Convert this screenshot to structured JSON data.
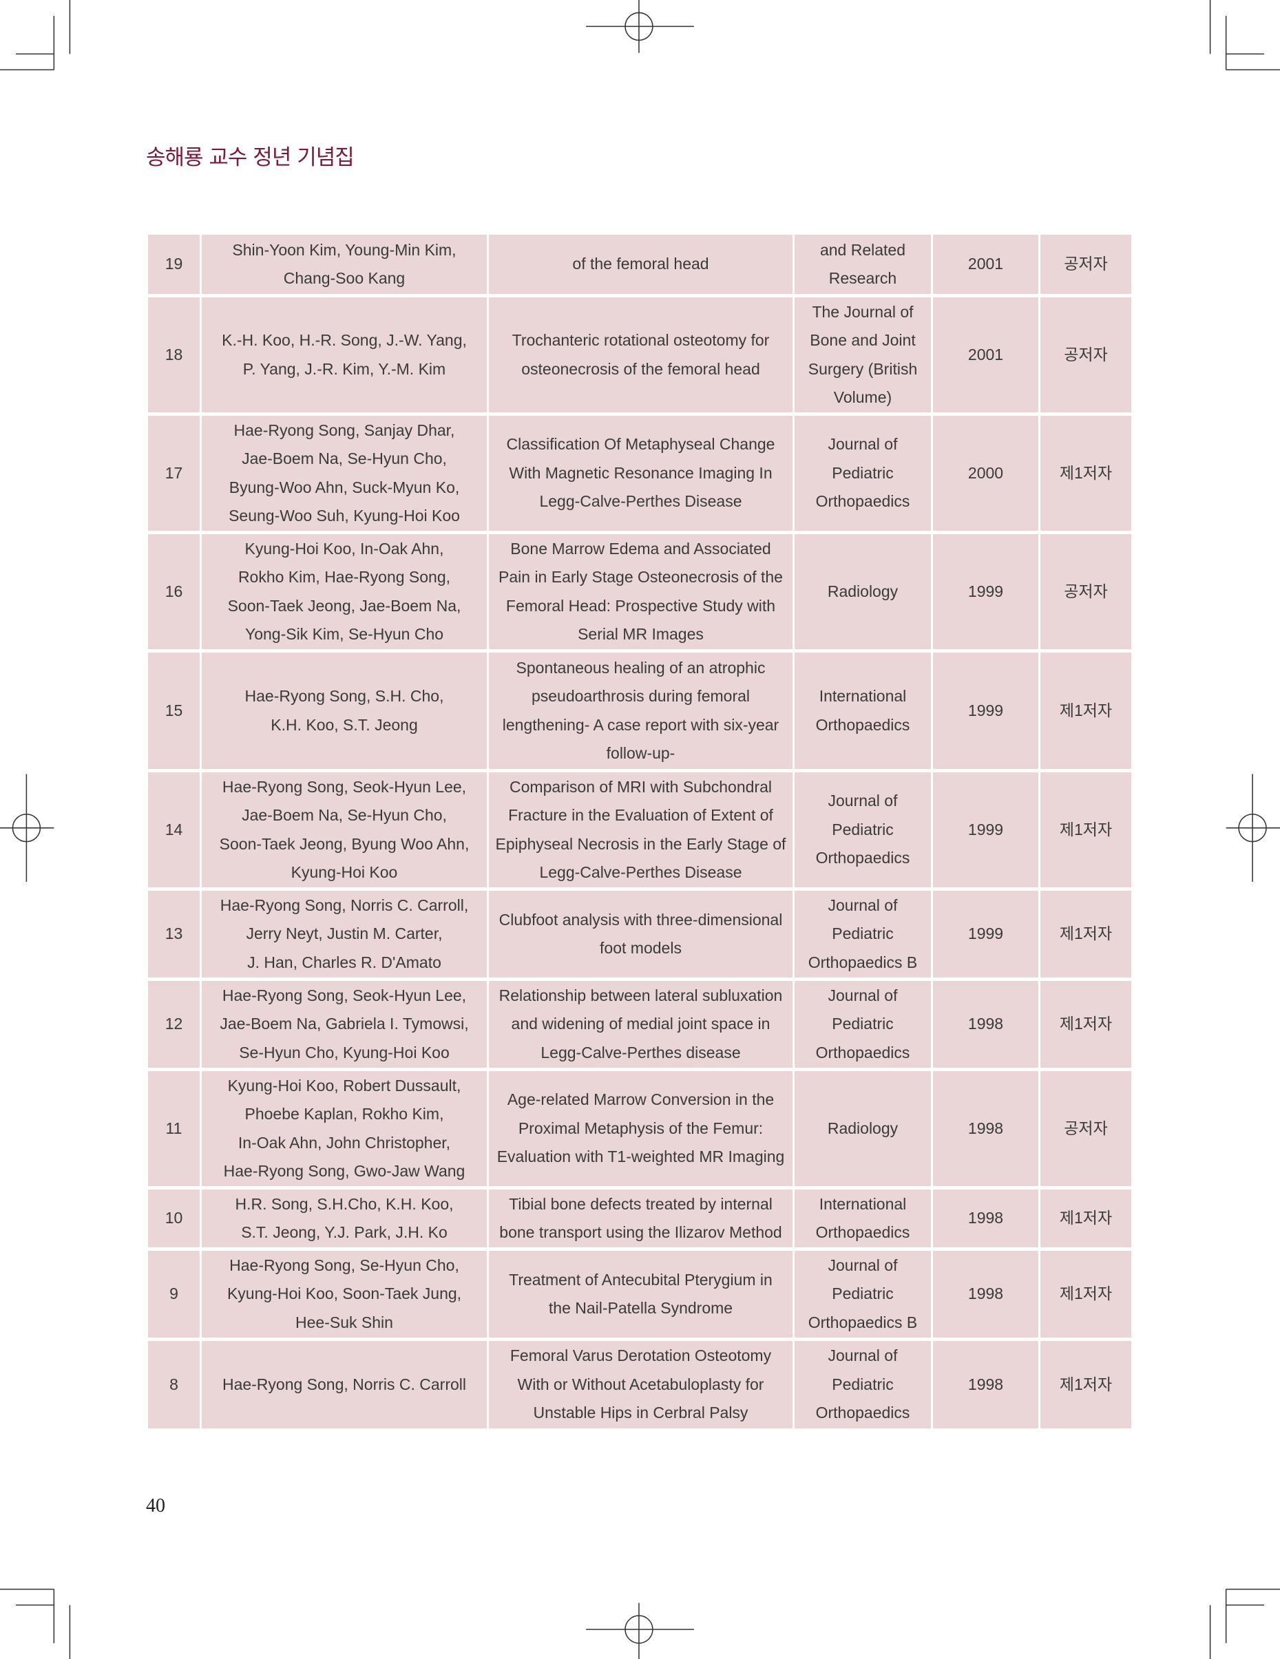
{
  "header": {
    "title": "송해룡 교수 정년 기념집"
  },
  "page_number": "40",
  "colors": {
    "title": "#7a1b3a",
    "cell_background": "#ead6d6"
  },
  "rows": [
    {
      "no": "19",
      "authors": "Shin-Yoon Kim, Young-Min Kim,\nChang-Soo Kang",
      "title": "of the femoral head",
      "journal": "and Related\nResearch",
      "year": "2001",
      "role": "공저자"
    },
    {
      "no": "18",
      "authors": "K.-H. Koo, H.-R. Song, J.-W. Yang,\nP. Yang, J.-R. Kim, Y.-M. Kim",
      "title": "Trochanteric rotational osteotomy for\nosteonecrosis of the femoral head",
      "journal": "The Journal of\nBone and Joint\nSurgery (British\nVolume)",
      "year": "2001",
      "role": "공저자"
    },
    {
      "no": "17",
      "authors": "Hae-Ryong Song, Sanjay Dhar,\nJae-Boem Na, Se-Hyun Cho,\nByung-Woo Ahn, Suck-Myun Ko,\nSeung-Woo Suh, Kyung-Hoi Koo",
      "title": "Classification Of Metaphyseal Change\nWith Magnetic Resonance Imaging In\nLegg-Calve-Perthes Disease",
      "journal": "Journal of\nPediatric\nOrthopaedics",
      "year": "2000",
      "role": "제1저자"
    },
    {
      "no": "16",
      "authors": "Kyung-Hoi Koo, In-Oak Ahn,\nRokho Kim, Hae-Ryong Song,\nSoon-Taek Jeong, Jae-Boem Na,\nYong-Sik Kim, Se-Hyun Cho",
      "title": "Bone Marrow Edema and Associated\nPain in Early Stage Osteonecrosis of the\nFemoral Head: Prospective Study with\nSerial MR Images",
      "journal": "Radiology",
      "year": "1999",
      "role": "공저자"
    },
    {
      "no": "15",
      "authors": "Hae-Ryong Song, S.H. Cho,\nK.H. Koo, S.T. Jeong",
      "title": "Spontaneous healing of an atrophic\npseudoarthrosis during femoral\nlengthening- A case report with six-year\nfollow-up-",
      "journal": "International\nOrthopaedics",
      "year": "1999",
      "role": "제1저자"
    },
    {
      "no": "14",
      "authors": "Hae-Ryong Song, Seok-Hyun Lee,\nJae-Boem Na, Se-Hyun Cho,\nSoon-Taek Jeong, Byung Woo Ahn,\nKyung-Hoi Koo",
      "title": "Comparison of MRI with Subchondral\nFracture in the Evaluation of Extent of\nEpiphyseal Necrosis in the Early Stage of\nLegg-Calve-Perthes Disease",
      "journal": "Journal of\nPediatric\nOrthopaedics",
      "year": "1999",
      "role": "제1저자"
    },
    {
      "no": "13",
      "authors": "Hae-Ryong Song, Norris C. Carroll,\nJerry Neyt, Justin M. Carter,\nJ. Han, Charles R. D'Amato",
      "title": "Clubfoot analysis with three-dimensional\nfoot models",
      "journal": "Journal of\nPediatric\nOrthopaedics B",
      "year": "1999",
      "role": "제1저자"
    },
    {
      "no": "12",
      "authors": "Hae-Ryong Song, Seok-Hyun Lee,\nJae-Boem Na, Gabriela I. Tymowsi,\nSe-Hyun Cho, Kyung-Hoi Koo",
      "title": "Relationship between lateral subluxation\nand widening of medial joint space in\nLegg-Calve-Perthes disease",
      "journal": "Journal of\nPediatric\nOrthopaedics",
      "year": "1998",
      "role": "제1저자"
    },
    {
      "no": "11",
      "authors": "Kyung-Hoi Koo, Robert Dussault,\nPhoebe Kaplan, Rokho Kim,\nIn-Oak Ahn, John Christopher,\nHae-Ryong Song, Gwo-Jaw Wang",
      "title": "Age-related Marrow Conversion in the\nProximal Metaphysis of the Femur:\nEvaluation with T1-weighted MR Imaging",
      "journal": "Radiology",
      "year": "1998",
      "role": "공저자"
    },
    {
      "no": "10",
      "authors": "H.R. Song, S.H.Cho, K.H. Koo,\nS.T. Jeong, Y.J. Park, J.H. Ko",
      "title": "Tibial bone defects treated by internal\nbone transport using the Ilizarov Method",
      "journal": "International\nOrthopaedics",
      "year": "1998",
      "role": "제1저자"
    },
    {
      "no": "9",
      "authors": "Hae-Ryong Song, Se-Hyun Cho,\nKyung-Hoi Koo, Soon-Taek Jung,\nHee-Suk Shin",
      "title": "Treatment of Antecubital Pterygium in\nthe Nail-Patella Syndrome",
      "journal": "Journal of\nPediatric\nOrthopaedics B",
      "year": "1998",
      "role": "제1저자"
    },
    {
      "no": "8",
      "authors": "Hae-Ryong Song, Norris C. Carroll",
      "title": "Femoral Varus Derotation Osteotomy\nWith or Without Acetabuloplasty for\nUnstable Hips in Cerbral Palsy",
      "journal": "Journal of\nPediatric\nOrthopaedics",
      "year": "1998",
      "role": "제1저자"
    }
  ]
}
